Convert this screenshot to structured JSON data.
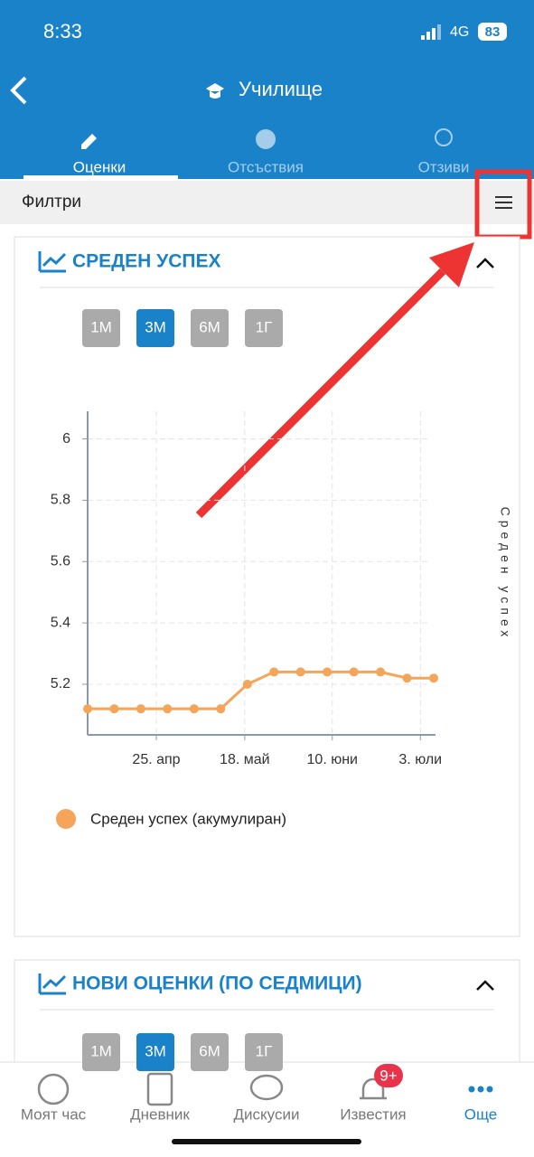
{
  "status_bar": {
    "time": "8:33",
    "network": "4G",
    "battery": "83"
  },
  "header": {
    "title": "Училище"
  },
  "tabs": [
    "Оценки",
    "Отсъствия",
    "Отзиви"
  ],
  "filter": {
    "label": "Филтри"
  },
  "cards": [
    {
      "title": "СРЕДЕН УСПЕХ",
      "ranges": [
        "1М",
        "3М",
        "6М",
        "1Г"
      ]
    },
    {
      "title": "НОВИ ОЦЕНКИ (ПО СЕДМИЦИ)",
      "ranges": [
        "1М",
        "3М",
        "6М",
        "1Г"
      ]
    }
  ],
  "chart_data": {
    "type": "line",
    "y_label": "Среден успех",
    "categories": [
      null,
      null,
      null,
      null,
      null,
      null,
      null,
      null,
      null,
      null,
      null,
      null,
      null,
      null
    ],
    "series": [
      {
        "name": "Среден успех (акумулиран)",
        "color": "#f5a55a",
        "values": [
          5.12,
          5.12,
          5.12,
          5.12,
          5.12,
          5.12,
          5.2,
          5.24,
          5.24,
          5.24,
          5.24,
          5.24,
          5.22,
          5.22
        ]
      }
    ],
    "xlim": [
      0,
      13
    ],
    "xticks": [
      {
        "value": 2.58,
        "label": "25. апр"
      },
      {
        "value": 5.9,
        "label": "18. май"
      },
      {
        "value": 9.19,
        "label": "10. юни"
      },
      {
        "value": 12.5,
        "label": "3. юли"
      }
    ],
    "ylim": [
      5.035,
      6.09
    ],
    "yticks": [
      5.2,
      5.4,
      5.6,
      5.8,
      6
    ],
    "grid": true
  },
  "bottom_nav": [
    "Моят час",
    "Дневник",
    "Дискусии",
    "Известия",
    "Още"
  ],
  "notification_badge": "9+"
}
